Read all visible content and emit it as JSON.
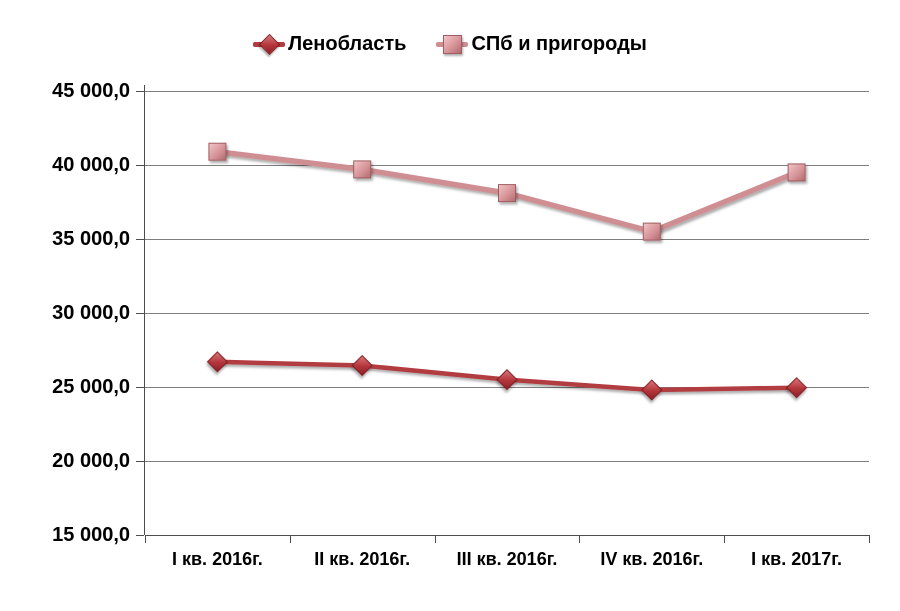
{
  "chart_data": {
    "type": "line",
    "title": "",
    "categories": [
      "I кв. 2016г.",
      "II кв. 2016г.",
      "III кв. 2016г.",
      "IV кв. 2016г.",
      "I кв. 2017г."
    ],
    "series": [
      {
        "name": "Ленобласть",
        "values": [
          26700,
          26450,
          25500,
          24800,
          24950
        ],
        "marker": "diamond",
        "line_color": "#b23c41",
        "marker_light": "#d9787c",
        "marker_mid": "#b2343a",
        "marker_dark": "#8c2126",
        "marker_stroke": "#7f1d22"
      },
      {
        "name": "СПб и пригороды",
        "values": [
          40900,
          39700,
          38100,
          35500,
          39500
        ],
        "marker": "square",
        "line_color": "#cf8f92",
        "marker_light": "#f0c6c8",
        "marker_mid": "#d79499",
        "marker_dark": "#b16a6e",
        "marker_stroke": "#a15d61"
      }
    ],
    "ylim": [
      15000,
      45000
    ],
    "ytick_step": 5000,
    "ytick_labels": [
      "45 000,0",
      "40 000,0",
      "35 000,0",
      "30 000,0",
      "25 000,0",
      "20 000,0",
      "15 000,0"
    ],
    "grid": true,
    "legend_position": "top",
    "gridline_color": "#7f7f7f",
    "axis_color": "#4d4d4d",
    "label_color": "#000000"
  }
}
